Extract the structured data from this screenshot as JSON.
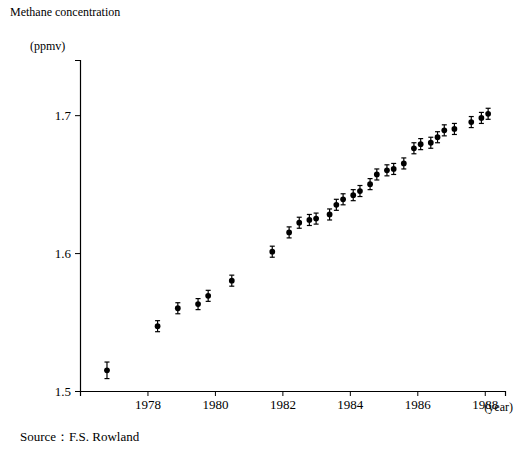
{
  "chart_data": {
    "type": "scatter",
    "ylabel": [
      "Methane concentration",
      "(ppmv)"
    ],
    "xlabel": "(year)",
    "source": "Source：F.S. Rowland",
    "x": [
      1976.8,
      1978.3,
      1978.9,
      1979.5,
      1979.8,
      1980.5,
      1981.7,
      1982.2,
      1982.5,
      1982.8,
      1983.0,
      1983.4,
      1983.6,
      1983.8,
      1984.1,
      1984.3,
      1984.6,
      1984.8,
      1985.1,
      1985.3,
      1985.6,
      1985.9,
      1986.1,
      1986.4,
      1986.6,
      1986.8,
      1987.1,
      1987.6,
      1987.9,
      1988.1
    ],
    "values": [
      1.515,
      1.547,
      1.56,
      1.563,
      1.569,
      1.58,
      1.601,
      1.615,
      1.622,
      1.624,
      1.625,
      1.628,
      1.635,
      1.639,
      1.642,
      1.645,
      1.65,
      1.657,
      1.66,
      1.661,
      1.665,
      1.676,
      1.679,
      1.68,
      1.684,
      1.689,
      1.69,
      1.695,
      1.698,
      1.701
    ],
    "errors": [
      0.006,
      0.004,
      0.004,
      0.004,
      0.004,
      0.004,
      0.004,
      0.004,
      0.004,
      0.004,
      0.004,
      0.004,
      0.004,
      0.004,
      0.004,
      0.004,
      0.004,
      0.004,
      0.004,
      0.004,
      0.004,
      0.004,
      0.004,
      0.004,
      0.004,
      0.004,
      0.004,
      0.004,
      0.004,
      0.004
    ],
    "color": "#000000",
    "marker": "circle",
    "xlim": [
      1976,
      1988.6
    ],
    "ylim": [
      1.5,
      1.74
    ],
    "xticks": [
      1978,
      1980,
      1982,
      1984,
      1986,
      1988
    ],
    "yticks": [
      1.5,
      1.6,
      1.7
    ],
    "grid": false
  }
}
